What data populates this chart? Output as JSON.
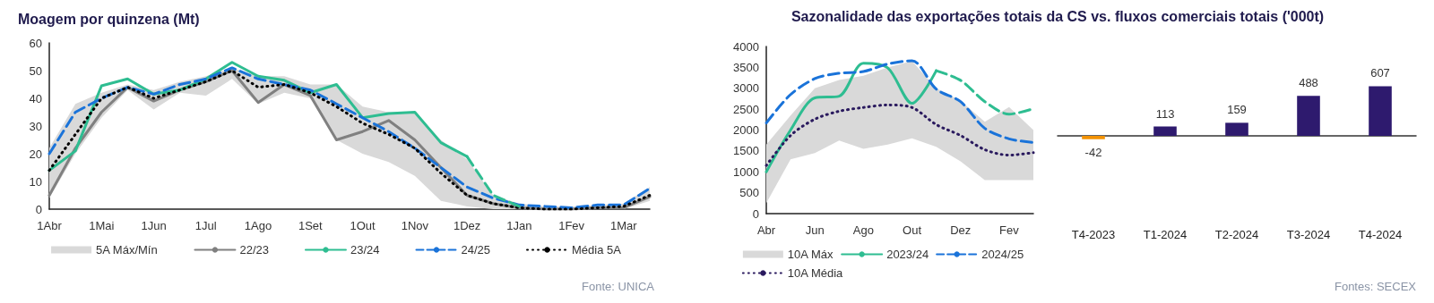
{
  "chart_data": [
    {
      "type": "line",
      "title": "Moagem por quinzena (Mt)",
      "categories": [
        "1Abr",
        null,
        "1Mai",
        null,
        "1Jun",
        null,
        "1Jul",
        null,
        "1Ago",
        null,
        "1Set",
        null,
        "1Out",
        null,
        "1Nov",
        null,
        "1Dez",
        null,
        "1Jan",
        null,
        "1Fev",
        null,
        "1Mar",
        null
      ],
      "series": [
        {
          "name": "5A Máx/Mín",
          "type": "area",
          "color": "#d9d9d9",
          "values": [
            null,
            null,
            null,
            null,
            null,
            null,
            null,
            null,
            null,
            null,
            null,
            null,
            null,
            null,
            null,
            null,
            null,
            null,
            null,
            null,
            null,
            null,
            null,
            null
          ],
          "lower": [
            4,
            20,
            33,
            43,
            36,
            42,
            41,
            47,
            38,
            42,
            40,
            25,
            20,
            17,
            12,
            3,
            1,
            0,
            0,
            0,
            0,
            0,
            0,
            3
          ],
          "upper": [
            22,
            38,
            42,
            45,
            43,
            46,
            48,
            51,
            48,
            48,
            45,
            45,
            37,
            35,
            35,
            25,
            18,
            5,
            2,
            1,
            1,
            1.5,
            2,
            8
          ]
        },
        {
          "name": "22/23",
          "color": "#808080",
          "line_style": "solid",
          "values": [
            5,
            22,
            35,
            44,
            39,
            43,
            46,
            50,
            38.5,
            45,
            41,
            25,
            28,
            32,
            25,
            15,
            5,
            2,
            0.5,
            0,
            0,
            0.5,
            0.5,
            4.5
          ]
        },
        {
          "name": "23/24",
          "color": "#2ebd91",
          "line_style": "solid",
          "values": [
            14,
            21,
            44.5,
            47,
            41.5,
            43,
            47,
            53,
            48,
            46.5,
            42,
            45,
            33,
            34.5,
            35,
            24,
            19,
            null,
            null,
            null,
            null,
            null,
            null,
            null
          ]
        },
        {
          "color": "#2ebd91",
          "line_style": "dashed",
          "values": [
            null,
            null,
            null,
            null,
            null,
            null,
            null,
            null,
            null,
            null,
            null,
            null,
            null,
            null,
            null,
            null,
            19,
            5,
            1,
            null,
            null,
            null,
            null,
            null
          ]
        },
        {
          "name": "24/25",
          "color": "#1a73d9",
          "line_style": "dashed",
          "values": [
            20,
            35,
            40,
            44,
            41.5,
            45,
            47,
            51,
            47,
            45,
            43,
            38,
            33,
            28,
            22,
            15,
            8,
            4,
            1.5,
            1,
            0.5,
            1.5,
            1.5,
            7.5
          ]
        },
        {
          "name": "Média 5A",
          "color": "#000000",
          "line_style": "dotted",
          "values": [
            14,
            27,
            40,
            44,
            40,
            43,
            46,
            50,
            44,
            45,
            42,
            37,
            31,
            27,
            22,
            13,
            5,
            2,
            0.5,
            0,
            0,
            0.5,
            1,
            5
          ]
        }
      ],
      "ylim": [
        0,
        60
      ],
      "yticks": [
        0,
        10,
        20,
        30,
        40,
        50,
        60
      ],
      "grid": false,
      "legend": "bottom",
      "marker": "none",
      "annotations": [
        "Fonte: UNICA"
      ]
    },
    {
      "type": "line",
      "title": "Sazonalidade das exportações totais da CS vs. fluxos comerciais totais ('000t)",
      "categories": [
        "Abr",
        null,
        "Jun",
        null,
        "Ago",
        null,
        "Out",
        null,
        "Dez",
        null,
        "Fev",
        null
      ],
      "series": [
        {
          "name": "10A Máx",
          "type": "area",
          "color": "#d9d9d9",
          "values": [
            null,
            null,
            null,
            null,
            null,
            null,
            null,
            null,
            null,
            null,
            null,
            null
          ],
          "lower": [
            250,
            1300,
            1450,
            1750,
            1550,
            1650,
            1800,
            1600,
            1250,
            800,
            800,
            800
          ],
          "upper": [
            1650,
            2350,
            3000,
            3200,
            3300,
            3500,
            3650,
            3000,
            2700,
            2200,
            2550,
            2000
          ]
        },
        {
          "name": "2023/24",
          "color": "#2ebd91",
          "line_style": "solid",
          "values": [
            1000,
            2000,
            2770,
            2810,
            3600,
            3490,
            2640,
            3420,
            null,
            null,
            null,
            null
          ]
        },
        {
          "color": "#2ebd91",
          "line_style": "dashed",
          "values": [
            null,
            null,
            null,
            null,
            null,
            null,
            null,
            3420,
            3190,
            2680,
            2380,
            2510
          ]
        },
        {
          "name": "2024/25",
          "color": "#1a73d9",
          "line_style": "dashed",
          "values": [
            2170,
            2850,
            3230,
            3360,
            3400,
            3580,
            3660,
            2980,
            2680,
            2040,
            1790,
            1700
          ]
        },
        {
          "name": "10A Média",
          "color": "#2a1a5e",
          "line_style": "dotted",
          "values": [
            1150,
            1870,
            2260,
            2450,
            2540,
            2600,
            2540,
            2130,
            1870,
            1530,
            1400,
            1460
          ]
        }
      ],
      "ylim": [
        0,
        4000
      ],
      "yticks": [
        0,
        500,
        1000,
        1500,
        2000,
        2500,
        3000,
        3500,
        4000
      ],
      "grid": false,
      "legend": "bottom",
      "marker": "none"
    },
    {
      "type": "bar",
      "categories": [
        "T4-2023",
        "T1-2024",
        "T2-2024",
        "T3-2024",
        "T4-2024"
      ],
      "values": [
        -42,
        113,
        159,
        488,
        607
      ],
      "colors": [
        "#f39200",
        "#2e1a6e",
        "#2e1a6e",
        "#2e1a6e",
        "#2e1a6e"
      ],
      "data_labels": true,
      "annotations": [
        "Fontes: SECEX"
      ]
    }
  ]
}
